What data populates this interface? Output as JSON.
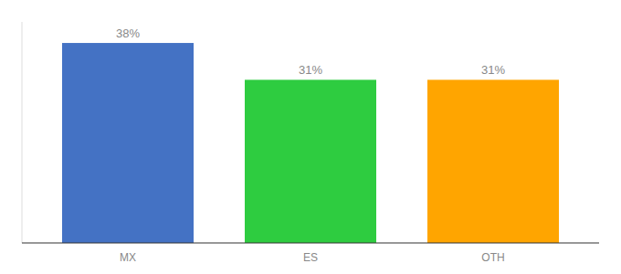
{
  "chart_data": {
    "type": "bar",
    "categories": [
      "MX",
      "ES",
      "OTH"
    ],
    "values": [
      38,
      31,
      31
    ],
    "value_labels": [
      "38%",
      "31%",
      "31%"
    ],
    "colors": [
      "#4472C4",
      "#2ECC40",
      "#FFA500"
    ],
    "ylim": [
      0,
      42
    ],
    "grid": false,
    "data_labels": true,
    "tick_labels": "x"
  }
}
